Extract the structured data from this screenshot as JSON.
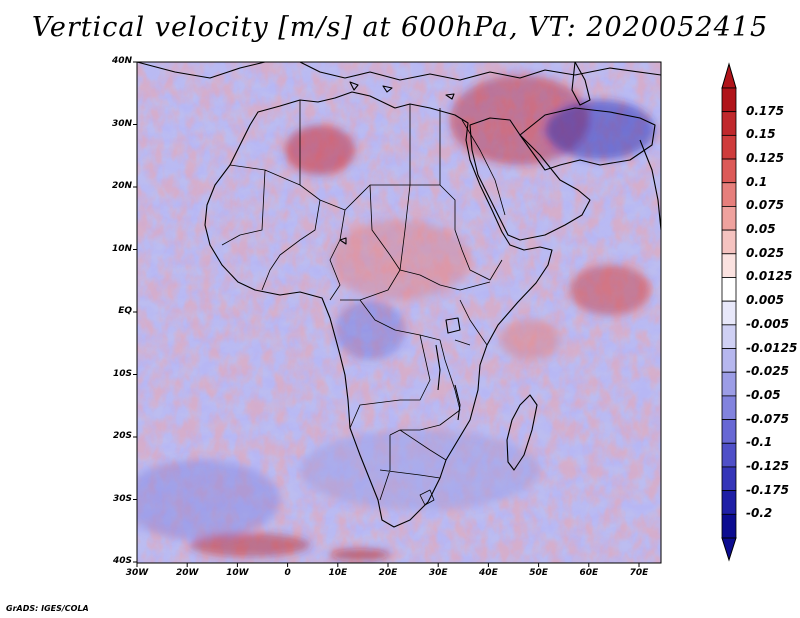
{
  "title": "Vertical velocity [m/s] at 600hPa, VT: 2020052415",
  "credit": "GrADS: IGES/COLA",
  "map": {
    "region": "Africa and Middle East",
    "latitude_labels": [
      "40N",
      "30N",
      "20N",
      "10N",
      "EQ",
      "10S",
      "20S",
      "30S",
      "40S"
    ],
    "longitude_labels": [
      "30W",
      "20W",
      "10W",
      "0",
      "10E",
      "20E",
      "30E",
      "40E",
      "50E",
      "60E",
      "70E"
    ]
  },
  "colorbar": {
    "labels": [
      "0.175",
      "0.15",
      "0.125",
      "0.1",
      "0.075",
      "0.05",
      "0.025",
      "0.0125",
      "0.005",
      "-0.005",
      "-0.0125",
      "-0.025",
      "-0.05",
      "-0.075",
      "-0.1",
      "-0.125",
      "-0.175",
      "-0.2"
    ],
    "colors": [
      "#b0141a",
      "#c0282c",
      "#cf3c3c",
      "#dc5a58",
      "#e67f7c",
      "#efa29e",
      "#f5c3c0",
      "#fbe2e0",
      "#ffffff",
      "#e8e8fa",
      "#cfd0f4",
      "#b6b7ee",
      "#9c9de6",
      "#8283de",
      "#6868d4",
      "#4f4fc8",
      "#3535b8",
      "#1f1fa6",
      "#0c0c90"
    ]
  },
  "colors": {
    "up_max": "#b0141a",
    "down_max": "#0c0c90",
    "neutral": "#ffffff"
  }
}
